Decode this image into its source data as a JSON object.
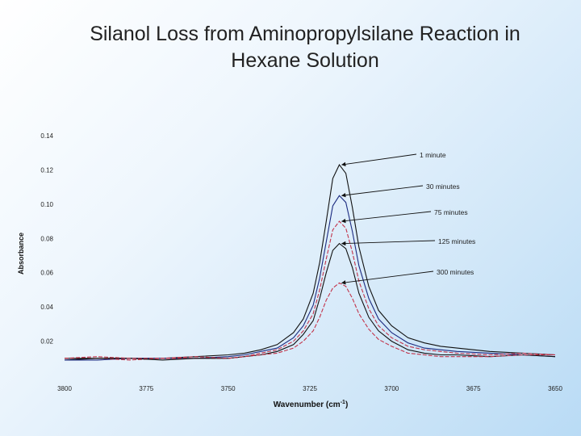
{
  "slide": {
    "title_line1": "Silanol Loss from Aminopropylsilane Reaction in",
    "title_line2": "Hexane Solution"
  },
  "chart_data": {
    "type": "line",
    "xlabel": "Wavenumber (cm",
    "xlabel_sup": "-1",
    "xlabel_close": ")",
    "ylabel": "Absorbance",
    "x_reversed": true,
    "xlim": [
      3800,
      3650
    ],
    "ylim": [
      0.0,
      0.14
    ],
    "xticks": [
      "3800",
      "3775",
      "3750",
      "3725",
      "3700",
      "3675",
      "3650"
    ],
    "yticks": [
      "0.14",
      "0.12",
      "0.10",
      "0.08",
      "0.06",
      "0.04",
      "0.02"
    ],
    "grid": false,
    "colors": {
      "black": "#111111",
      "navy": "#1b2a80",
      "red": "#c2334a"
    },
    "series": [
      {
        "name": "1 minute",
        "color": "black",
        "x": [
          3800,
          3790,
          3780,
          3770,
          3760,
          3750,
          3745,
          3740,
          3735,
          3730,
          3727,
          3724,
          3722,
          3720,
          3718,
          3716,
          3714,
          3712,
          3710,
          3707,
          3704,
          3700,
          3695,
          3690,
          3685,
          3680,
          3670,
          3660,
          3650
        ],
        "y": [
          0.009,
          0.01,
          0.01,
          0.01,
          0.011,
          0.012,
          0.013,
          0.015,
          0.018,
          0.025,
          0.033,
          0.048,
          0.066,
          0.09,
          0.115,
          0.123,
          0.118,
          0.098,
          0.075,
          0.052,
          0.038,
          0.029,
          0.022,
          0.019,
          0.017,
          0.016,
          0.014,
          0.013,
          0.012
        ]
      },
      {
        "name": "30 minutes",
        "color": "navy",
        "x": [
          3800,
          3790,
          3780,
          3770,
          3760,
          3750,
          3745,
          3740,
          3735,
          3730,
          3727,
          3724,
          3722,
          3720,
          3718,
          3716,
          3714,
          3712,
          3710,
          3707,
          3704,
          3700,
          3695,
          3690,
          3685,
          3680,
          3670,
          3660,
          3650
        ],
        "y": [
          0.009,
          0.009,
          0.01,
          0.01,
          0.01,
          0.011,
          0.012,
          0.014,
          0.016,
          0.022,
          0.029,
          0.041,
          0.057,
          0.078,
          0.099,
          0.105,
          0.101,
          0.084,
          0.064,
          0.045,
          0.033,
          0.025,
          0.019,
          0.016,
          0.015,
          0.014,
          0.013,
          0.012,
          0.011
        ]
      },
      {
        "name": "75 minutes",
        "color": "red",
        "x": [
          3800,
          3790,
          3780,
          3770,
          3760,
          3750,
          3745,
          3740,
          3735,
          3730,
          3727,
          3724,
          3722,
          3720,
          3718,
          3716,
          3714,
          3712,
          3710,
          3707,
          3704,
          3700,
          3695,
          3690,
          3685,
          3680,
          3670,
          3660,
          3650
        ],
        "y": [
          0.01,
          0.01,
          0.009,
          0.01,
          0.01,
          0.01,
          0.011,
          0.013,
          0.015,
          0.02,
          0.026,
          0.036,
          0.05,
          0.068,
          0.085,
          0.09,
          0.086,
          0.072,
          0.055,
          0.039,
          0.029,
          0.022,
          0.017,
          0.015,
          0.014,
          0.013,
          0.012,
          0.013,
          0.012
        ]
      },
      {
        "name": "125 minutes",
        "color": "black",
        "x": [
          3800,
          3790,
          3780,
          3770,
          3760,
          3750,
          3745,
          3740,
          3735,
          3730,
          3727,
          3724,
          3722,
          3720,
          3718,
          3716,
          3714,
          3712,
          3710,
          3707,
          3704,
          3700,
          3695,
          3690,
          3685,
          3680,
          3670,
          3660,
          3650
        ],
        "y": [
          0.01,
          0.01,
          0.01,
          0.009,
          0.01,
          0.01,
          0.011,
          0.012,
          0.014,
          0.018,
          0.024,
          0.032,
          0.045,
          0.06,
          0.073,
          0.077,
          0.074,
          0.063,
          0.048,
          0.034,
          0.026,
          0.02,
          0.015,
          0.013,
          0.012,
          0.012,
          0.011,
          0.012,
          0.011
        ]
      },
      {
        "name": "300 minutes",
        "color": "red",
        "x": [
          3800,
          3790,
          3780,
          3770,
          3760,
          3750,
          3745,
          3740,
          3735,
          3730,
          3727,
          3724,
          3722,
          3720,
          3718,
          3716,
          3714,
          3712,
          3710,
          3707,
          3704,
          3700,
          3695,
          3690,
          3685,
          3680,
          3670,
          3660,
          3650
        ],
        "y": [
          0.01,
          0.011,
          0.01,
          0.01,
          0.011,
          0.01,
          0.011,
          0.012,
          0.013,
          0.016,
          0.02,
          0.026,
          0.034,
          0.044,
          0.051,
          0.054,
          0.052,
          0.045,
          0.036,
          0.027,
          0.021,
          0.017,
          0.013,
          0.012,
          0.011,
          0.011,
          0.011,
          0.012,
          0.012
        ]
      }
    ],
    "annotations": [
      {
        "text": "1 minute",
        "series": 0
      },
      {
        "text": "30 minutes",
        "series": 1
      },
      {
        "text": "75 minutes",
        "series": 2
      },
      {
        "text": "125 minutes",
        "series": 3
      },
      {
        "text": "300 minutes",
        "series": 4
      }
    ]
  }
}
